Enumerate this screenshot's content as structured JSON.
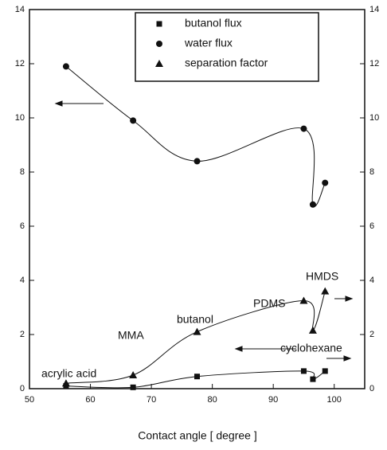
{
  "chart_data": {
    "type": "scatter",
    "x_label": "Contact angle [ degree ]",
    "xlim": [
      50,
      105
    ],
    "xticks": [
      50,
      60,
      70,
      80,
      90,
      100
    ],
    "ylim": [
      0,
      14
    ],
    "yticks": [
      0,
      2,
      4,
      6,
      8,
      10,
      12,
      14
    ],
    "y2lim": [
      0,
      14
    ],
    "y2ticks": [
      0,
      2,
      4,
      6,
      8,
      10,
      12,
      14
    ],
    "legend": "top-right",
    "series": [
      {
        "name": "butanol flux",
        "marker": "square",
        "color": "#111111",
        "x": [
          56,
          67,
          77.5,
          95,
          96.5,
          98.5
        ],
        "values": [
          0.1,
          0.05,
          0.45,
          0.65,
          0.35,
          0.65
        ]
      },
      {
        "name": "water flux",
        "marker": "circle",
        "color": "#111111",
        "x": [
          56,
          67,
          77.5,
          95,
          96.5,
          98.5
        ],
        "values": [
          11.9,
          9.9,
          8.4,
          9.6,
          6.8,
          7.6
        ]
      },
      {
        "name": "separation factor",
        "marker": "triangle",
        "color": "#111111",
        "axis": "y2",
        "x": [
          56,
          67,
          77.5,
          95,
          96.5,
          98.5
        ],
        "values": [
          0.2,
          0.5,
          2.1,
          3.25,
          2.15,
          3.6
        ]
      }
    ],
    "annotations": [
      "acrylic acid",
      "MMA",
      "butanol",
      "PDMS",
      "cyclohexane",
      "HMDS"
    ]
  }
}
